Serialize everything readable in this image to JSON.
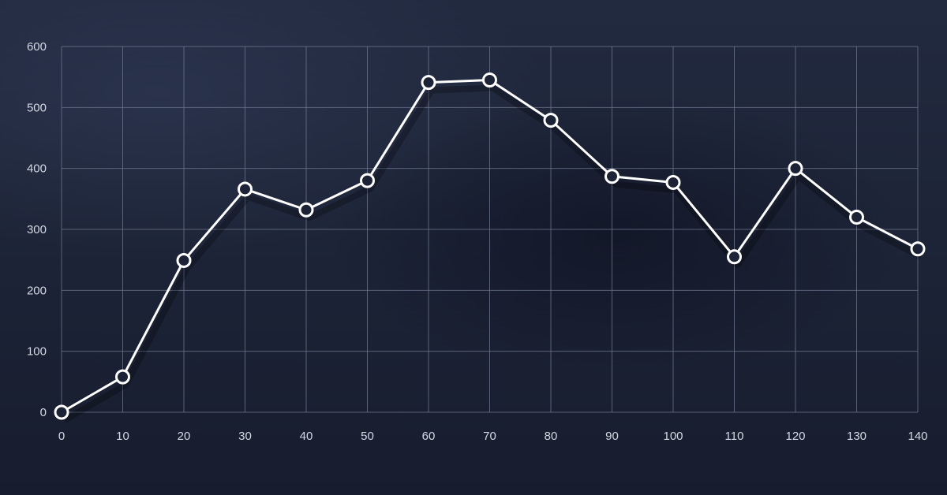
{
  "chart_data": {
    "type": "line",
    "title": "",
    "xlabel": "",
    "ylabel": "",
    "x_ticks": [
      0,
      10,
      20,
      30,
      40,
      50,
      60,
      70,
      80,
      90,
      100,
      110,
      120,
      130,
      140
    ],
    "y_ticks": [
      0,
      100,
      200,
      300,
      400,
      500,
      600
    ],
    "xlim": [
      0,
      140
    ],
    "ylim": [
      0,
      600
    ],
    "grid": true,
    "legend": "none",
    "series": [
      {
        "x": [
          0,
          10,
          20,
          30,
          40,
          50,
          60,
          70,
          80,
          90,
          100,
          110,
          120,
          130,
          140
        ],
        "values": [
          0,
          58,
          249,
          366,
          332,
          380,
          541,
          545,
          479,
          387,
          377,
          255,
          400,
          320,
          268
        ]
      }
    ],
    "colors": {
      "line": "#ffffff",
      "marker_fill": "#1c2336",
      "grid": "#6f7890",
      "labels": "#d4d8e2",
      "background": "#1d2438"
    }
  }
}
